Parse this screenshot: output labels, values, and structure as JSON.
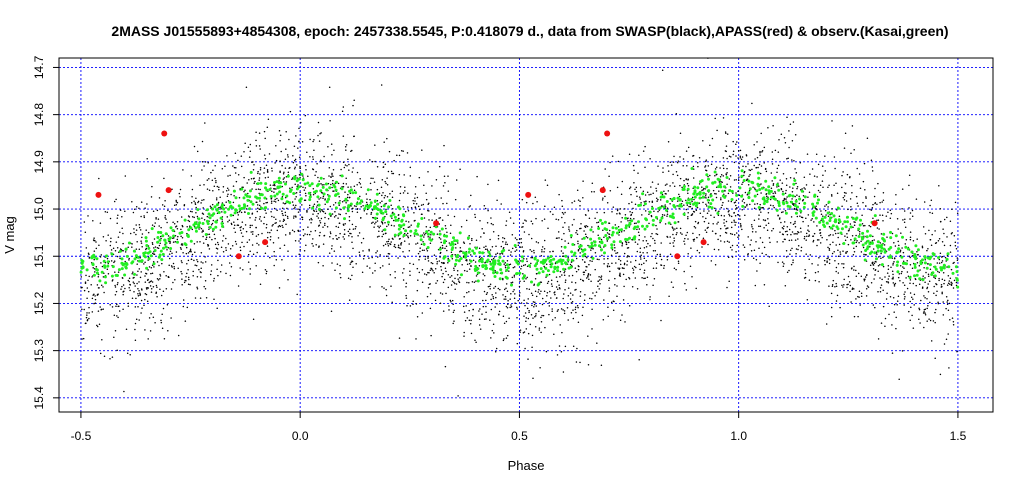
{
  "chart_data": {
    "type": "scatter",
    "title": "2MASS J01555893+4854308, epoch: 2457338.5545, P:0.418079 d., data from SWASP(black),APASS(red) & observ.(Kasai,green)",
    "xlabel": "Phase",
    "ylabel": "V mag",
    "xlim": [
      -0.55,
      1.58
    ],
    "ylim": [
      15.43,
      14.68
    ],
    "y_inverted": true,
    "x_ticks": [
      -0.5,
      0.0,
      0.5,
      1.0,
      1.5
    ],
    "x_tick_labels": [
      "-0.5",
      "0.0",
      "0.5",
      "1.0",
      "1.5"
    ],
    "y_ticks": [
      14.7,
      14.8,
      14.9,
      15.0,
      15.1,
      15.2,
      15.3,
      15.4
    ],
    "y_tick_labels": [
      "14.7",
      "14.8",
      "14.9",
      "15.0",
      "15.1",
      "15.2",
      "15.3",
      "15.4"
    ],
    "grid": true,
    "grid_color": "#0000ff",
    "series": [
      {
        "name": "SWASP",
        "color": "#000000",
        "description_of_shape": "dense noisy scatter following the light curve",
        "model": {
          "mean": 15.06,
          "amplitude": 0.085,
          "min_phase": 0.5,
          "scatter": 0.075
        },
        "count": 4200
      },
      {
        "name": "observ. (Kasai)",
        "color": "#22ee22",
        "model": {
          "mean": 15.04,
          "amplitude": 0.085,
          "min_phase": 0.5,
          "scatter": 0.018
        },
        "count": 900
      },
      {
        "name": "APASS",
        "color": "#ee1111",
        "x": [
          -0.46,
          -0.31,
          -0.3,
          -0.14,
          -0.08,
          0.31,
          0.52,
          0.69,
          0.7,
          0.86,
          0.92,
          1.31
        ],
        "y": [
          14.97,
          14.84,
          14.96,
          15.1,
          15.07,
          15.03,
          14.97,
          14.96,
          14.84,
          15.1,
          15.07,
          15.03
        ]
      }
    ]
  }
}
